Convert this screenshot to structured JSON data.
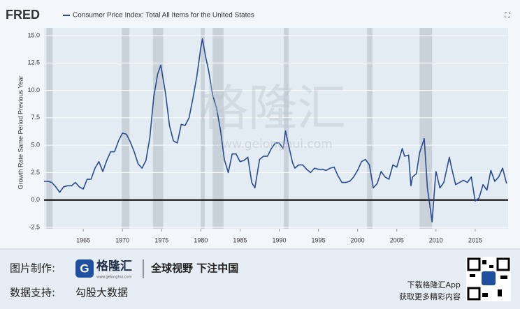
{
  "chart_data": {
    "type": "line",
    "logo": "FRED",
    "legend_label": "Consumer Price Index: Total All Items for the United States",
    "y_label": "Growth Rate Same Period Previous Year",
    "color": "#2a4b8d",
    "x": [
      1960.0,
      1960.5,
      1961.0,
      1961.5,
      1962.0,
      1962.5,
      1963.0,
      1963.5,
      1964.0,
      1964.5,
      1965.0,
      1965.5,
      1966.0,
      1966.5,
      1967.0,
      1967.5,
      1968.0,
      1968.5,
      1969.0,
      1969.5,
      1970.0,
      1970.5,
      1971.0,
      1971.5,
      1972.0,
      1972.5,
      1973.0,
      1973.5,
      1974.0,
      1974.5,
      1974.9,
      1975.5,
      1976.0,
      1976.5,
      1977.0,
      1977.5,
      1978.0,
      1978.5,
      1979.0,
      1979.5,
      1980.0,
      1980.2,
      1980.6,
      1981.0,
      1981.5,
      1982.0,
      1982.5,
      1983.0,
      1983.5,
      1984.0,
      1984.5,
      1985.0,
      1985.5,
      1986.0,
      1986.5,
      1986.9,
      1987.5,
      1988.0,
      1988.5,
      1989.0,
      1989.5,
      1990.0,
      1990.5,
      1990.8,
      1991.2,
      1991.7,
      1992.0,
      1992.5,
      1993.0,
      1993.5,
      1994.0,
      1994.5,
      1995.0,
      1995.5,
      1996.0,
      1996.5,
      1997.0,
      1997.5,
      1998.0,
      1998.5,
      1999.0,
      1999.5,
      2000.0,
      2000.5,
      2001.0,
      2001.5,
      2002.0,
      2002.5,
      2003.0,
      2003.5,
      2004.0,
      2004.5,
      2005.0,
      2005.7,
      2006.0,
      2006.5,
      2006.8,
      2007.0,
      2007.5,
      2007.9,
      2008.5,
      2008.9,
      2009.2,
      2009.5,
      2009.9,
      2010.0,
      2010.5,
      2011.0,
      2011.7,
      2012.0,
      2012.5,
      2013.0,
      2013.5,
      2014.0,
      2014.5,
      2015.0,
      2015.5,
      2016.0,
      2016.5,
      2017.0,
      2017.5,
      2018.0,
      2018.5,
      2019.0
    ],
    "values": [
      1.7,
      1.7,
      1.6,
      1.2,
      0.7,
      1.2,
      1.3,
      1.3,
      1.6,
      1.2,
      1.0,
      1.9,
      1.9,
      2.9,
      3.5,
      2.6,
      3.6,
      4.4,
      4.4,
      5.4,
      6.1,
      6.0,
      5.3,
      4.4,
      3.3,
      2.9,
      3.6,
      5.7,
      9.4,
      11.5,
      12.3,
      9.7,
      6.8,
      5.4,
      5.2,
      6.9,
      6.8,
      7.5,
      9.3,
      11.3,
      13.9,
      14.7,
      13.1,
      11.8,
      9.6,
      8.4,
      6.4,
      3.7,
      2.5,
      4.2,
      4.2,
      3.5,
      3.6,
      3.9,
      1.6,
      1.1,
      3.7,
      4.0,
      4.0,
      4.7,
      5.2,
      5.2,
      4.7,
      6.3,
      5.0,
      3.4,
      2.9,
      3.2,
      3.2,
      2.8,
      2.5,
      2.9,
      2.8,
      2.8,
      2.7,
      2.9,
      3.0,
      2.2,
      1.6,
      1.6,
      1.7,
      2.1,
      2.7,
      3.5,
      3.7,
      3.2,
      1.1,
      1.5,
      2.6,
      2.1,
      1.9,
      3.2,
      3.0,
      4.7,
      4.0,
      4.1,
      1.3,
      2.1,
      2.4,
      4.3,
      5.6,
      1.1,
      -0.4,
      -2.0,
      1.8,
      2.6,
      1.1,
      1.6,
      3.9,
      2.9,
      1.4,
      1.6,
      1.8,
      1.6,
      2.1,
      -0.1,
      0.2,
      1.4,
      0.9,
      2.7,
      1.7,
      2.1,
      2.9,
      1.5
    ],
    "recessions": [
      [
        1960.3,
        1961.1
      ],
      [
        1969.9,
        1970.9
      ],
      [
        1973.9,
        1975.2
      ],
      [
        1980.0,
        1980.5
      ],
      [
        1981.5,
        1982.9
      ],
      [
        1990.6,
        1991.2
      ],
      [
        2001.2,
        2001.9
      ],
      [
        2007.9,
        2009.5
      ]
    ],
    "xlim": [
      1960.0,
      2019.2
    ],
    "xticks": [
      1965,
      1970,
      1975,
      1980,
      1985,
      1990,
      1995,
      2000,
      2005,
      2010,
      2015
    ],
    "ylim": [
      -2.5,
      15.0
    ],
    "yticks": [
      {
        "value": -2.5,
        "label": "-2.5"
      },
      {
        "value": 0,
        "label": "0.0"
      },
      {
        "value": 2.5,
        "label": "2.5"
      },
      {
        "value": 5,
        "label": "5.0"
      },
      {
        "value": 7.5,
        "label": "7.5"
      },
      {
        "value": 10,
        "label": "10.0"
      },
      {
        "value": 12.5,
        "label": "12.5"
      },
      {
        "value": 15,
        "label": "15.0"
      }
    ],
    "grid": true,
    "watermark": "格隆汇",
    "watermark_url": "www.gelonghui.com"
  },
  "footer": {
    "made_by_label": "图片制作:",
    "brand": "格隆汇",
    "brand_url": "www.gelonghui.com",
    "slogan": "全球视野 下注中国",
    "data_label": "数据支持:",
    "data_source": "勾股大数据",
    "app_line1": "下载格隆汇App",
    "app_line2": "获取更多精彩内容"
  }
}
